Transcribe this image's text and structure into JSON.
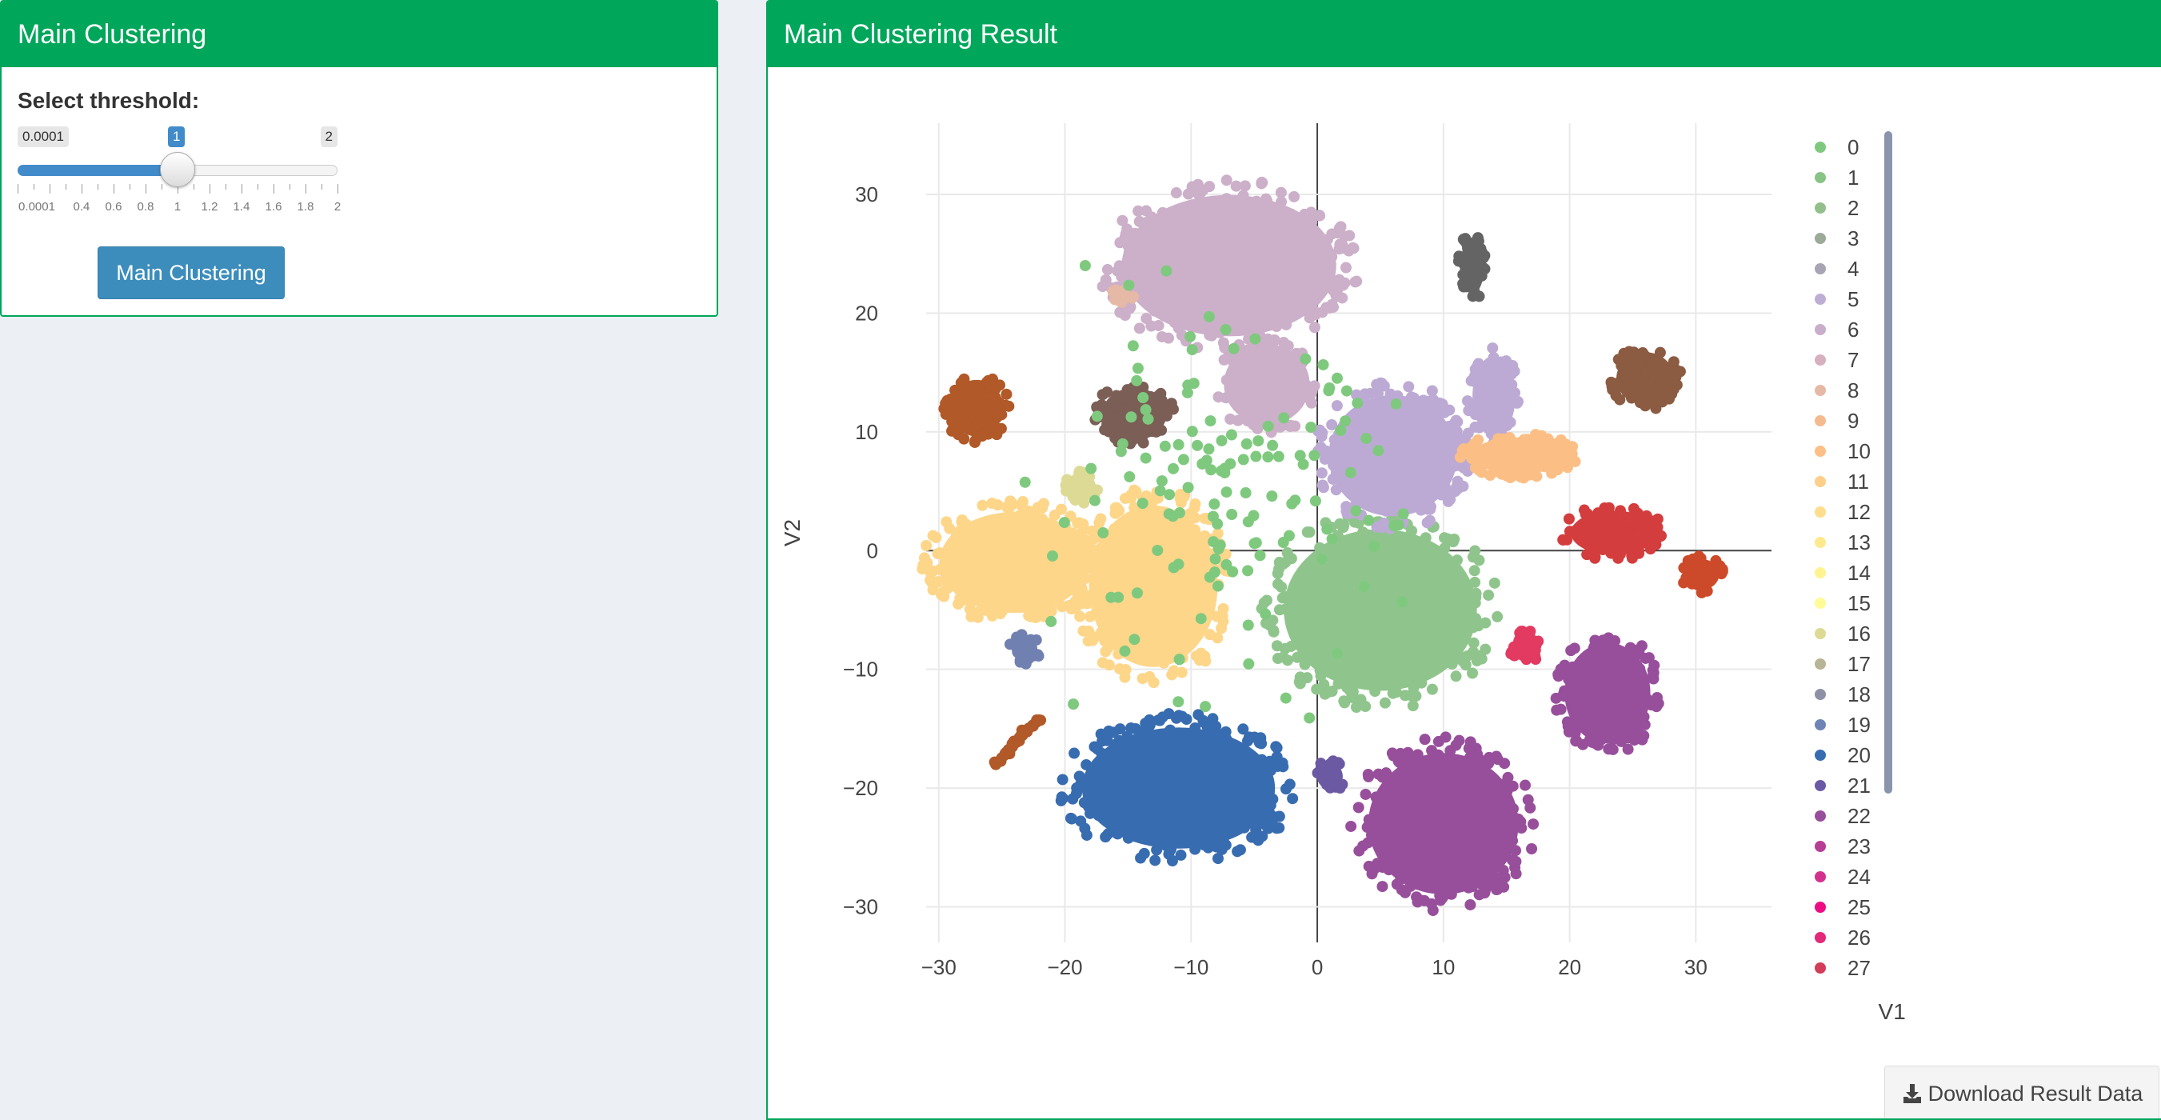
{
  "left_box": {
    "title": "Main Clustering",
    "threshold_label": "Select threshold:",
    "slider": {
      "min_label": "0.0001",
      "max_label": "2",
      "value_label": "1",
      "value": 1,
      "min": 0.0001,
      "max": 2,
      "tick_labels": [
        "0.0001",
        "0.4",
        "0.6",
        "0.8",
        "1",
        "1.2",
        "1.4",
        "1.6",
        "1.8",
        "2"
      ]
    },
    "button_label": "Main Clustering"
  },
  "right_box": {
    "title": "Main Clustering Result",
    "download_label": "Download Result Data",
    "download_icon": "download-icon"
  },
  "colors": {
    "header": "#00a65a",
    "button": "#3c8dbc",
    "slider": "#428bca"
  },
  "chart_data": {
    "type": "scatter",
    "xlabel": "V1",
    "ylabel": "V2",
    "xlim": [
      -31,
      36
    ],
    "ylim": [
      -33,
      36
    ],
    "x_ticks": [
      -30,
      -20,
      -10,
      0,
      10,
      20,
      30
    ],
    "y_ticks": [
      30,
      20,
      10,
      0,
      -10,
      -20,
      -30
    ],
    "x_tick_labels": [
      "−30",
      "−20",
      "−10",
      "0",
      "10",
      "20",
      "30"
    ],
    "y_tick_labels": [
      "30",
      "20",
      "10",
      "0",
      "−10",
      "−20",
      "−30"
    ],
    "grid": true,
    "legend_position": "right",
    "legend": [
      "0",
      "1",
      "2",
      "3",
      "4",
      "5",
      "6",
      "7",
      "8",
      "9",
      "10",
      "11",
      "12",
      "13",
      "14",
      "15",
      "16",
      "17",
      "18",
      "19",
      "20",
      "21",
      "22",
      "23",
      "24",
      "25",
      "26",
      "27"
    ],
    "legend_colors": [
      "#7fc97f",
      "#88c485",
      "#92bf8b",
      "#9cab98",
      "#a9a4b3",
      "#bfaed4",
      "#c9aecb",
      "#d7b0bf",
      "#e6b8a6",
      "#f5bb8e",
      "#fcc087",
      "#fdcf8a",
      "#fedd8c",
      "#fee98e",
      "#fff392",
      "#fffb96",
      "#dcda94",
      "#b8b496",
      "#8e91a6",
      "#6f84b6",
      "#386cb0",
      "#6b5aa3",
      "#974f9b",
      "#b53f95",
      "#d4318f",
      "#ee0c84",
      "#e2297a",
      "#d43d5a"
    ],
    "clusters": [
      {
        "label": "main-green",
        "color": "#8fc58c",
        "cx": 5,
        "cy": -5,
        "rx": 9,
        "ry": 8,
        "n": 320
      },
      {
        "label": "top-pink",
        "color": "#ccafc9",
        "cx": -7,
        "cy": 24,
        "rx": 10,
        "ry": 7,
        "n": 320
      },
      {
        "label": "upper-pink",
        "color": "#ccafc9",
        "cx": -4,
        "cy": 14,
        "rx": 4,
        "ry": 4,
        "n": 120
      },
      {
        "label": "lavender",
        "color": "#bcaad4",
        "cx": 6,
        "cy": 8,
        "rx": 6,
        "ry": 6,
        "n": 220
      },
      {
        "label": "lavender-arm",
        "color": "#bcaad4",
        "cx": 14,
        "cy": 13,
        "rx": 2,
        "ry": 4,
        "n": 70
      },
      {
        "label": "orange-peach",
        "color": "#fbbf86",
        "cx": 16,
        "cy": 8,
        "rx": 4.5,
        "ry": 1.8,
        "n": 110
      },
      {
        "label": "yellow-left",
        "color": "#fdd68a",
        "cx": -24,
        "cy": -1,
        "rx": 7,
        "ry": 5,
        "n": 240
      },
      {
        "label": "yellow-right",
        "color": "#fdd68a",
        "cx": -13,
        "cy": -3,
        "rx": 6,
        "ry": 8,
        "n": 260
      },
      {
        "label": "blue",
        "color": "#386cb0",
        "cx": -11,
        "cy": -20,
        "rx": 9,
        "ry": 6,
        "n": 300
      },
      {
        "label": "purple",
        "color": "#974f9b",
        "cx": 10,
        "cy": -23,
        "rx": 7,
        "ry": 7,
        "n": 280
      },
      {
        "label": "purple-right",
        "color": "#974f9b",
        "cx": 23,
        "cy": -12,
        "rx": 4,
        "ry": 5,
        "n": 160
      },
      {
        "label": "brown-top-right",
        "color": "#8b5b42",
        "cx": 26,
        "cy": 14.5,
        "rx": 2.7,
        "ry": 2.6,
        "n": 80
      },
      {
        "label": "brown-left",
        "color": "#7b5e55",
        "cx": -14.5,
        "cy": 11.5,
        "rx": 3,
        "ry": 2.6,
        "n": 80
      },
      {
        "label": "rust-left",
        "color": "#b15928",
        "cx": -27,
        "cy": 12,
        "rx": 2.5,
        "ry": 2.8,
        "n": 70
      },
      {
        "label": "red",
        "color": "#d43d3d",
        "cx": 23.5,
        "cy": 1.5,
        "rx": 4,
        "ry": 2.2,
        "n": 100
      },
      {
        "label": "red-orange",
        "color": "#cc4a2a",
        "cx": 30.5,
        "cy": -2,
        "rx": 1.6,
        "ry": 1.5,
        "n": 40
      },
      {
        "label": "dark-gray",
        "color": "#646464",
        "cx": 12.3,
        "cy": 24,
        "rx": 1.1,
        "ry": 2.8,
        "n": 40
      },
      {
        "label": "pink-red",
        "color": "#e23a60",
        "cx": 16.5,
        "cy": -8,
        "rx": 1.2,
        "ry": 1.6,
        "n": 30
      },
      {
        "label": "small-indigo",
        "color": "#6b5aa3",
        "cx": 1,
        "cy": -19,
        "rx": 1.2,
        "ry": 1.3,
        "n": 25
      },
      {
        "label": "small-slate",
        "color": "#7080b0",
        "cx": -23.2,
        "cy": -8.3,
        "rx": 1.2,
        "ry": 1.2,
        "n": 20
      },
      {
        "label": "small-olive",
        "color": "#dcda94",
        "cx": -18.8,
        "cy": 5.3,
        "rx": 1.5,
        "ry": 1.4,
        "n": 22
      },
      {
        "label": "small-salmon",
        "color": "#e6b8a6",
        "cx": -15.5,
        "cy": 21.5,
        "rx": 0.9,
        "ry": 0.7,
        "n": 12
      }
    ],
    "orange_line": {
      "color": "#b15928",
      "x": [
        -25.5,
        -22
      ],
      "y": [
        -18,
        -14
      ]
    }
  }
}
